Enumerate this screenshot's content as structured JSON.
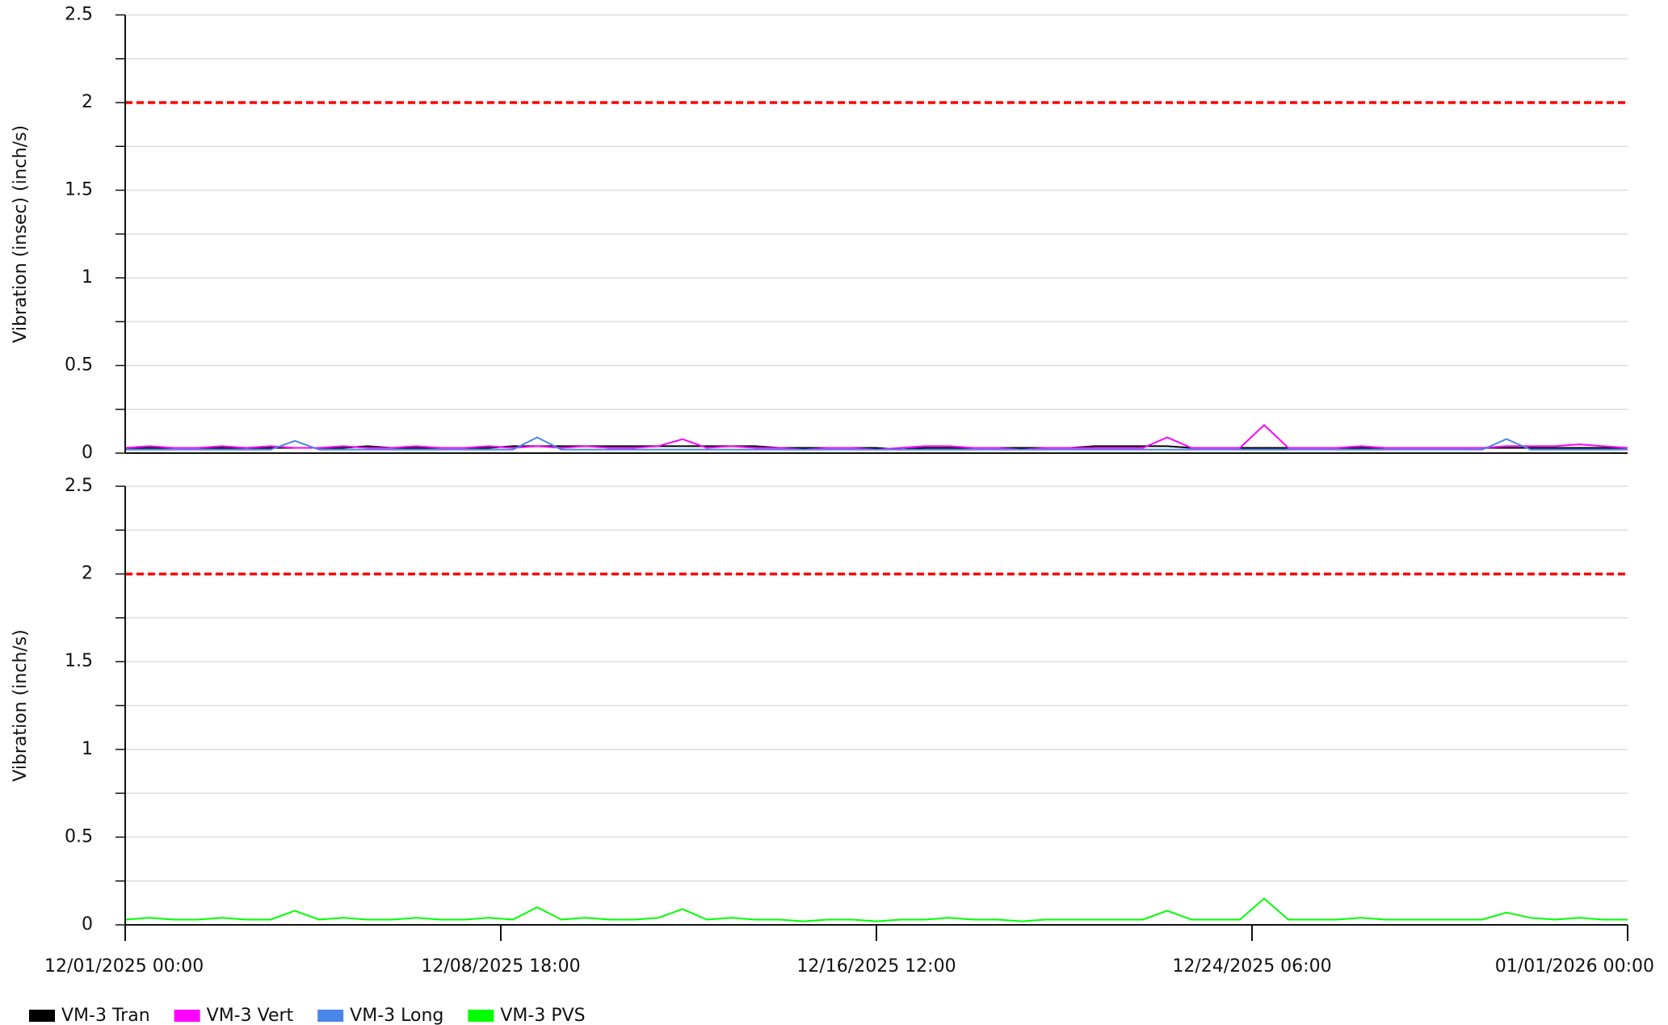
{
  "chart_data": [
    {
      "type": "line",
      "y_label": "Vibration (insec) (inch/s)",
      "ylim": [
        0,
        2.5
      ],
      "yticks": [
        0,
        0.5,
        1,
        1.5,
        2,
        2.5
      ],
      "minor_yticks": [
        0.25,
        0.75,
        1.25,
        1.75,
        2.25
      ],
      "grid": true,
      "reference_line": {
        "value": 2,
        "color": "#ff0000"
      },
      "xlim": [
        "12/01/2025 00:00",
        "01/01/2026 00:00"
      ],
      "x": [
        "12/01/2025 00:00",
        "12/01/2025 12:00",
        "12/02/2025 00:00",
        "12/02/2025 12:00",
        "12/03/2025 00:00",
        "12/03/2025 12:00",
        "12/04/2025 00:00",
        "12/04/2025 12:00",
        "12/05/2025 00:00",
        "12/05/2025 12:00",
        "12/06/2025 00:00",
        "12/06/2025 12:00",
        "12/07/2025 00:00",
        "12/07/2025 12:00",
        "12/08/2025 00:00",
        "12/08/2025 12:00",
        "12/09/2025 00:00",
        "12/09/2025 12:00",
        "12/10/2025 00:00",
        "12/10/2025 12:00",
        "12/11/2025 00:00",
        "12/11/2025 12:00",
        "12/12/2025 00:00",
        "12/12/2025 12:00",
        "12/13/2025 00:00",
        "12/13/2025 12:00",
        "12/14/2025 00:00",
        "12/14/2025 12:00",
        "12/15/2025 00:00",
        "12/15/2025 12:00",
        "12/16/2025 00:00",
        "12/16/2025 12:00",
        "12/17/2025 00:00",
        "12/17/2025 12:00",
        "12/18/2025 00:00",
        "12/18/2025 12:00",
        "12/19/2025 00:00",
        "12/19/2025 12:00",
        "12/20/2025 00:00",
        "12/20/2025 12:00",
        "12/21/2025 00:00",
        "12/21/2025 12:00",
        "12/22/2025 00:00",
        "12/22/2025 12:00",
        "12/23/2025 00:00",
        "12/23/2025 12:00",
        "12/24/2025 00:00",
        "12/24/2025 12:00",
        "12/25/2025 00:00",
        "12/25/2025 12:00",
        "12/26/2025 00:00",
        "12/26/2025 12:00",
        "12/27/2025 00:00",
        "12/27/2025 12:00",
        "12/28/2025 00:00",
        "12/28/2025 12:00",
        "12/29/2025 00:00",
        "12/29/2025 12:00",
        "12/30/2025 00:00",
        "12/30/2025 12:00",
        "12/31/2025 00:00",
        "12/31/2025 12:00",
        "01/01/2026 00:00"
      ],
      "series": [
        {
          "name": "VM-3 Tran",
          "color": "#000000",
          "values": [
            0.03,
            0.03,
            0.03,
            0.03,
            0.03,
            0.03,
            0.03,
            0.03,
            0.03,
            0.03,
            0.04,
            0.03,
            0.03,
            0.03,
            0.03,
            0.03,
            0.04,
            0.04,
            0.04,
            0.04,
            0.04,
            0.04,
            0.04,
            0.04,
            0.04,
            0.04,
            0.04,
            0.03,
            0.03,
            0.03,
            0.03,
            0.03,
            0.02,
            0.03,
            0.03,
            0.03,
            0.03,
            0.03,
            0.03,
            0.03,
            0.04,
            0.04,
            0.04,
            0.04,
            0.03,
            0.03,
            0.03,
            0.03,
            0.03,
            0.03,
            0.03,
            0.03,
            0.03,
            0.03,
            0.03,
            0.03,
            0.03,
            0.03,
            0.03,
            0.03,
            0.03,
            0.03,
            0.03
          ]
        },
        {
          "name": "VM-3 Vert",
          "color": "#ff00ff",
          "values": [
            0.03,
            0.04,
            0.03,
            0.03,
            0.04,
            0.03,
            0.04,
            0.03,
            0.03,
            0.04,
            0.03,
            0.03,
            0.04,
            0.03,
            0.03,
            0.04,
            0.03,
            0.04,
            0.03,
            0.04,
            0.03,
            0.03,
            0.04,
            0.08,
            0.03,
            0.04,
            0.03,
            0.03,
            0.02,
            0.03,
            0.03,
            0.02,
            0.03,
            0.04,
            0.04,
            0.03,
            0.03,
            0.02,
            0.03,
            0.03,
            0.03,
            0.03,
            0.03,
            0.09,
            0.03,
            0.03,
            0.03,
            0.16,
            0.03,
            0.03,
            0.03,
            0.04,
            0.03,
            0.03,
            0.03,
            0.03,
            0.03,
            0.04,
            0.04,
            0.04,
            0.05,
            0.04,
            0.03
          ]
        },
        {
          "name": "VM-3 Long",
          "color": "#4a86e8",
          "values": [
            0.02,
            0.02,
            0.02,
            0.02,
            0.02,
            0.02,
            0.02,
            0.07,
            0.02,
            0.02,
            0.02,
            0.02,
            0.02,
            0.02,
            0.02,
            0.02,
            0.02,
            0.09,
            0.02,
            0.02,
            0.02,
            0.02,
            0.02,
            0.02,
            0.02,
            0.02,
            0.02,
            0.02,
            0.02,
            0.02,
            0.02,
            0.02,
            0.02,
            0.02,
            0.02,
            0.02,
            0.02,
            0.02,
            0.02,
            0.02,
            0.02,
            0.02,
            0.02,
            0.02,
            0.02,
            0.02,
            0.02,
            0.02,
            0.02,
            0.02,
            0.02,
            0.02,
            0.02,
            0.02,
            0.02,
            0.02,
            0.02,
            0.08,
            0.02,
            0.02,
            0.02,
            0.02,
            0.02
          ]
        }
      ]
    },
    {
      "type": "line",
      "y_label": "Vibration (inch/s)",
      "ylim": [
        0,
        2.5
      ],
      "yticks": [
        0,
        0.5,
        1,
        1.5,
        2,
        2.5
      ],
      "minor_yticks": [
        0.25,
        0.75,
        1.25,
        1.75,
        2.25
      ],
      "grid": true,
      "reference_line": {
        "value": 2,
        "color": "#ff0000"
      },
      "xlim": [
        "12/01/2025 00:00",
        "01/01/2026 00:00"
      ],
      "xticks": [
        "12/01/2025 00:00",
        "12/08/2025 18:00",
        "12/16/2025 12:00",
        "12/24/2025 06:00",
        "01/01/2026 00:00"
      ],
      "x": [
        "12/01/2025 00:00",
        "12/01/2025 12:00",
        "12/02/2025 00:00",
        "12/02/2025 12:00",
        "12/03/2025 00:00",
        "12/03/2025 12:00",
        "12/04/2025 00:00",
        "12/04/2025 12:00",
        "12/05/2025 00:00",
        "12/05/2025 12:00",
        "12/06/2025 00:00",
        "12/06/2025 12:00",
        "12/07/2025 00:00",
        "12/07/2025 12:00",
        "12/08/2025 00:00",
        "12/08/2025 12:00",
        "12/09/2025 00:00",
        "12/09/2025 12:00",
        "12/10/2025 00:00",
        "12/10/2025 12:00",
        "12/11/2025 00:00",
        "12/11/2025 12:00",
        "12/12/2025 00:00",
        "12/12/2025 12:00",
        "12/13/2025 00:00",
        "12/13/2025 12:00",
        "12/14/2025 00:00",
        "12/14/2025 12:00",
        "12/15/2025 00:00",
        "12/15/2025 12:00",
        "12/16/2025 00:00",
        "12/16/2025 12:00",
        "12/17/2025 00:00",
        "12/17/2025 12:00",
        "12/18/2025 00:00",
        "12/18/2025 12:00",
        "12/19/2025 00:00",
        "12/19/2025 12:00",
        "12/20/2025 00:00",
        "12/20/2025 12:00",
        "12/21/2025 00:00",
        "12/21/2025 12:00",
        "12/22/2025 00:00",
        "12/22/2025 12:00",
        "12/23/2025 00:00",
        "12/23/2025 12:00",
        "12/24/2025 00:00",
        "12/24/2025 12:00",
        "12/25/2025 00:00",
        "12/25/2025 12:00",
        "12/26/2025 00:00",
        "12/26/2025 12:00",
        "12/27/2025 00:00",
        "12/27/2025 12:00",
        "12/28/2025 00:00",
        "12/28/2025 12:00",
        "12/29/2025 00:00",
        "12/29/2025 12:00",
        "12/30/2025 00:00",
        "12/30/2025 12:00",
        "12/31/2025 00:00",
        "12/31/2025 12:00",
        "01/01/2026 00:00"
      ],
      "series": [
        {
          "name": "VM-3 PVS",
          "color": "#00ff00",
          "values": [
            0.03,
            0.04,
            0.03,
            0.03,
            0.04,
            0.03,
            0.03,
            0.08,
            0.03,
            0.04,
            0.03,
            0.03,
            0.04,
            0.03,
            0.03,
            0.04,
            0.03,
            0.1,
            0.03,
            0.04,
            0.03,
            0.03,
            0.04,
            0.09,
            0.03,
            0.04,
            0.03,
            0.03,
            0.02,
            0.03,
            0.03,
            0.02,
            0.03,
            0.03,
            0.04,
            0.03,
            0.03,
            0.02,
            0.03,
            0.03,
            0.03,
            0.03,
            0.03,
            0.08,
            0.03,
            0.03,
            0.03,
            0.15,
            0.03,
            0.03,
            0.03,
            0.04,
            0.03,
            0.03,
            0.03,
            0.03,
            0.03,
            0.07,
            0.04,
            0.03,
            0.04,
            0.03,
            0.03
          ]
        }
      ]
    }
  ]
}
